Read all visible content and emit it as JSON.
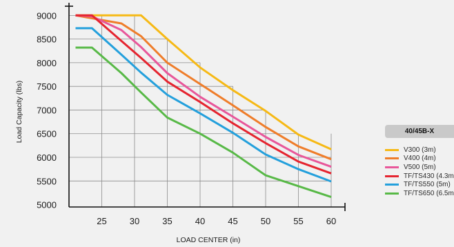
{
  "chart_data": {
    "type": "line",
    "title": "",
    "xlabel": {
      "main": "LOAD CENTER",
      "unit": "(in)"
    },
    "ylabel": {
      "main": "Load Capacity",
      "unit": "(lbs)"
    },
    "xlim": [
      20,
      62
    ],
    "ylim": [
      4950,
      9180
    ],
    "x_ticks": [
      25,
      30,
      35,
      40,
      45,
      50,
      55,
      60
    ],
    "y_ticks": [
      5000,
      5500,
      6000,
      6500,
      7000,
      7500,
      8000,
      8500,
      9000
    ],
    "grid": "stepped vertical and horizontal gridlines",
    "legend_position": "right",
    "legend_title": "40/45B-X",
    "series": [
      {
        "name": "V300 (3m)",
        "color": "#f6b915",
        "x": [
          21,
          31,
          35,
          40,
          45,
          50,
          55,
          60
        ],
        "y": [
          9000,
          9000,
          8500,
          7900,
          7420,
          6980,
          6480,
          6170
        ]
      },
      {
        "name": "V400 (4m)",
        "color": "#ef7d2a",
        "x": [
          21,
          28,
          31,
          35,
          40,
          45,
          50,
          55,
          60
        ],
        "y": [
          9000,
          8830,
          8560,
          8000,
          7550,
          7100,
          6640,
          6230,
          5960
        ]
      },
      {
        "name": "V500 (5m)",
        "color": "#e8579a",
        "x": [
          21,
          23.5,
          28,
          31,
          35,
          40,
          45,
          50,
          55,
          60
        ],
        "y": [
          9000,
          8980,
          8690,
          8330,
          7780,
          7280,
          6860,
          6430,
          6050,
          5800
        ]
      },
      {
        "name": "TF/TS430 (4.3m)",
        "color": "#e52530",
        "x": [
          21,
          23.5,
          28,
          31,
          35,
          40,
          45,
          50,
          55,
          60
        ],
        "y": [
          9000,
          9000,
          8460,
          8100,
          7600,
          7170,
          6720,
          6300,
          5910,
          5660
        ]
      },
      {
        "name": "TF/TS550 (5m)",
        "color": "#24a0dc",
        "x": [
          21,
          23.5,
          28,
          31,
          35,
          40,
          45,
          50,
          55,
          60
        ],
        "y": [
          8730,
          8730,
          8170,
          7790,
          7320,
          6930,
          6520,
          6060,
          5750,
          5490
        ]
      },
      {
        "name": "TF/TS650 (6.5m)",
        "color": "#58b947",
        "x": [
          21,
          23.5,
          28,
          31,
          35,
          40,
          45,
          50,
          55,
          60
        ],
        "y": [
          8320,
          8320,
          7780,
          7370,
          6840,
          6500,
          6100,
          5620,
          5390,
          5160
        ]
      }
    ]
  }
}
